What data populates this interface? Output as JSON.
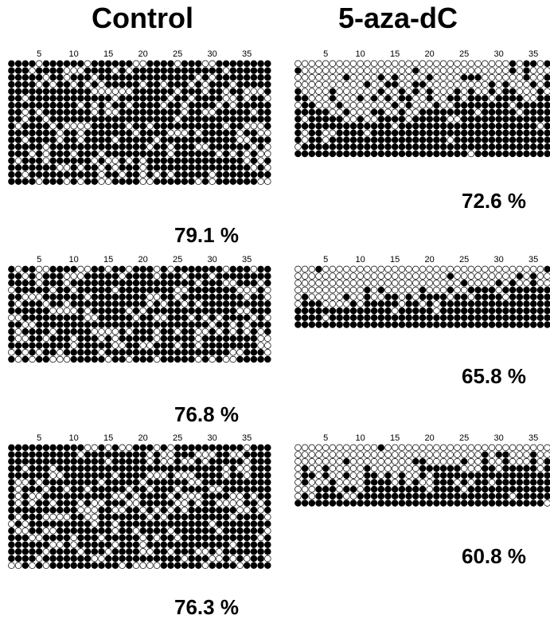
{
  "columns": {
    "control": "Control",
    "treated": "5-aza-dC"
  },
  "position_labels": [
    "5",
    "10",
    "15",
    "20",
    "25",
    "30",
    "35"
  ],
  "colors": {
    "methylated": "#000000",
    "unmethylated": "#ffffff",
    "outline": "#000000"
  },
  "panels": [
    {
      "group": "control",
      "percent": "79.1 %",
      "rows": 18,
      "sites": 38,
      "methylated_fraction": 0.791
    },
    {
      "group": "control",
      "percent": "76.8 %",
      "rows": 14,
      "sites": 38,
      "methylated_fraction": 0.768
    },
    {
      "group": "control",
      "percent": "76.3 %",
      "rows": 18,
      "sites": 38,
      "methylated_fraction": 0.763
    },
    {
      "group": "treated",
      "percent": "72.6 %",
      "rows": 14,
      "sites": 38,
      "methylated_fraction": 0.726
    },
    {
      "group": "treated",
      "percent": "65.8 %",
      "rows": 9,
      "sites": 38,
      "methylated_fraction": 0.658
    },
    {
      "group": "treated",
      "percent": "60.8 %",
      "rows": 9,
      "sites": 38,
      "methylated_fraction": 0.608
    }
  ]
}
